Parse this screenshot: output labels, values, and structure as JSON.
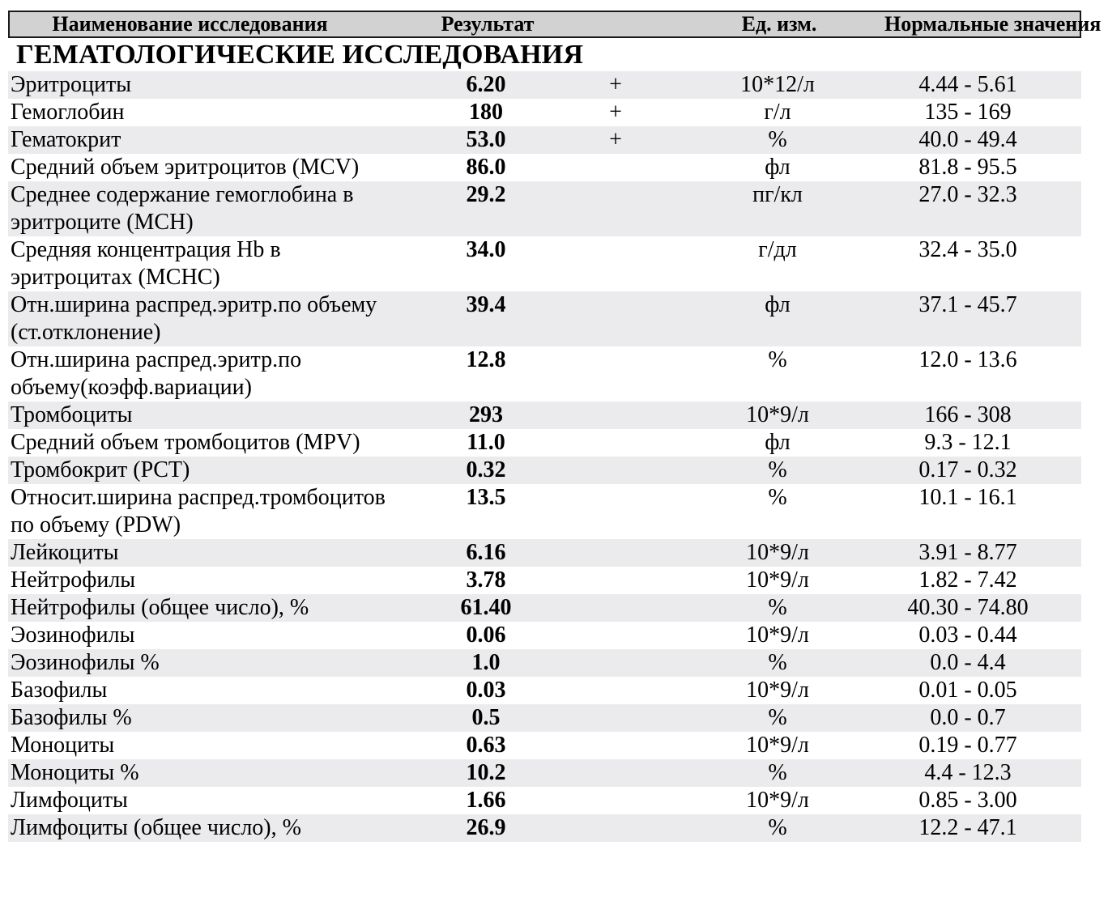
{
  "report": {
    "columns": {
      "name": "Наименование исследования",
      "result": "Результат",
      "flag": "",
      "unit": "Ед. изм.",
      "range": "Нормальные значения"
    },
    "section_title": "ГЕМАТОЛОГИЧЕСКИЕ ИССЛЕДОВАНИЯ",
    "rows": [
      {
        "name": "Эритроциты",
        "result": "6.20",
        "flag": "+",
        "unit": "10*12/л",
        "range": "4.44 - 5.61"
      },
      {
        "name": "Гемоглобин",
        "result": "180",
        "flag": "+",
        "unit": "г/л",
        "range": "135 - 169"
      },
      {
        "name": "Гематокрит",
        "result": "53.0",
        "flag": "+",
        "unit": "%",
        "range": "40.0 - 49.4"
      },
      {
        "name": "Средний объем эритроцитов (MCV)",
        "result": "86.0",
        "flag": "",
        "unit": "фл",
        "range": "81.8 - 95.5"
      },
      {
        "name": "Среднее содержание гемоглобина в\nэритроците (MCH)",
        "result": "29.2",
        "flag": "",
        "unit": "пг/кл",
        "range": "27.0 - 32.3"
      },
      {
        "name": "Средняя концентрация Hb в\nэритроцитах (MCHC)",
        "result": "34.0",
        "flag": "",
        "unit": "г/дл",
        "range": "32.4 - 35.0"
      },
      {
        "name": "Отн.ширина распред.эритр.по объему\n(ст.отклонение)",
        "result": "39.4",
        "flag": "",
        "unit": "фл",
        "range": "37.1 - 45.7"
      },
      {
        "name": "Отн.ширина распред.эритр.по\nобъему(коэфф.вариации)",
        "result": "12.8",
        "flag": "",
        "unit": "%",
        "range": "12.0 - 13.6"
      },
      {
        "name": "Тромбоциты",
        "result": "293",
        "flag": "",
        "unit": "10*9/л",
        "range": "166 - 308"
      },
      {
        "name": "Средний объем тромбоцитов (MPV)",
        "result": "11.0",
        "flag": "",
        "unit": "фл",
        "range": "9.3 - 12.1"
      },
      {
        "name": "Тромбокрит (PCT)",
        "result": "0.32",
        "flag": "",
        "unit": "%",
        "range": "0.17 - 0.32"
      },
      {
        "name": "Относит.ширина распред.тромбоцитов\nпо объему (PDW)",
        "result": "13.5",
        "flag": "",
        "unit": "%",
        "range": "10.1 - 16.1"
      },
      {
        "name": "Лейкоциты",
        "result": "6.16",
        "flag": "",
        "unit": "10*9/л",
        "range": "3.91 - 8.77"
      },
      {
        "name": "Нейтрофилы",
        "result": "3.78",
        "flag": "",
        "unit": "10*9/л",
        "range": "1.82 - 7.42"
      },
      {
        "name": "Нейтрофилы (общее число), %",
        "result": "61.40",
        "flag": "",
        "unit": "%",
        "range": "40.30 - 74.80"
      },
      {
        "name": "Эозинофилы",
        "result": "0.06",
        "flag": "",
        "unit": "10*9/л",
        "range": "0.03 - 0.44"
      },
      {
        "name": "Эозинофилы %",
        "result": "1.0",
        "flag": "",
        "unit": "%",
        "range": "0.0 - 4.4"
      },
      {
        "name": "Базофилы",
        "result": "0.03",
        "flag": "",
        "unit": "10*9/л",
        "range": "0.01 - 0.05"
      },
      {
        "name": "Базофилы %",
        "result": "0.5",
        "flag": "",
        "unit": "%",
        "range": "0.0 - 0.7"
      },
      {
        "name": "Моноциты",
        "result": "0.63",
        "flag": "",
        "unit": "10*9/л",
        "range": "0.19 - 0.77"
      },
      {
        "name": "Моноциты %",
        "result": "10.2",
        "flag": "",
        "unit": "%",
        "range": "4.4 - 12.3"
      },
      {
        "name": "Лимфоциты",
        "result": "1.66",
        "flag": "",
        "unit": "10*9/л",
        "range": "0.85 - 3.00"
      },
      {
        "name": "Лимфоциты (общее число), %",
        "result": "26.9",
        "flag": "",
        "unit": "%",
        "range": "12.2 - 47.1"
      }
    ],
    "colors": {
      "header_bg": "#d2d2d2",
      "stripe_bg": "#ebebed",
      "border": "#1a1a1a",
      "text": "#000000"
    }
  }
}
